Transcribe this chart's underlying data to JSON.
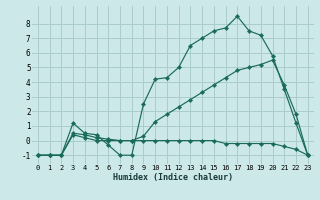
{
  "xlabel": "Humidex (Indice chaleur)",
  "bg_color": "#cce8e8",
  "grid_color": "#aacccc",
  "line_color": "#1a6b5a",
  "xlim": [
    -0.5,
    23.5
  ],
  "ylim": [
    -1.6,
    9.2
  ],
  "xticks": [
    0,
    1,
    2,
    3,
    4,
    5,
    6,
    7,
    8,
    9,
    10,
    11,
    12,
    13,
    14,
    15,
    16,
    17,
    18,
    19,
    20,
    21,
    22,
    23
  ],
  "yticks": [
    -1,
    0,
    1,
    2,
    3,
    4,
    5,
    6,
    7,
    8
  ],
  "series_top": {
    "x": [
      0,
      1,
      2,
      3,
      4,
      5,
      6,
      7,
      8,
      9,
      10,
      11,
      12,
      13,
      14,
      15,
      16,
      17,
      18,
      19,
      20,
      21,
      22,
      23
    ],
    "y": [
      -1,
      -1,
      -1,
      1.2,
      0.5,
      0.4,
      -0.3,
      -1,
      -1,
      2.5,
      4.2,
      4.3,
      5.0,
      6.5,
      7.0,
      7.5,
      7.7,
      8.5,
      7.5,
      7.2,
      5.8,
      3.5,
      1.2,
      -1
    ]
  },
  "series_mid": {
    "x": [
      0,
      1,
      2,
      3,
      4,
      5,
      6,
      7,
      8,
      9,
      10,
      11,
      12,
      13,
      14,
      15,
      16,
      17,
      18,
      19,
      20,
      21,
      22,
      23
    ],
    "y": [
      -1,
      -1,
      -1,
      0.5,
      0.4,
      0.2,
      0.1,
      0.0,
      0.0,
      0.3,
      1.3,
      1.8,
      2.3,
      2.8,
      3.3,
      3.8,
      4.3,
      4.8,
      5.0,
      5.2,
      5.5,
      3.8,
      1.8,
      -1
    ]
  },
  "series_bot": {
    "x": [
      0,
      1,
      2,
      3,
      4,
      5,
      6,
      7,
      8,
      9,
      10,
      11,
      12,
      13,
      14,
      15,
      16,
      17,
      18,
      19,
      20,
      21,
      22,
      23
    ],
    "y": [
      -1,
      -1,
      -1,
      0.4,
      0.2,
      0.0,
      0.0,
      0.0,
      0.0,
      0.0,
      0.0,
      0.0,
      0.0,
      0.0,
      0.0,
      0.0,
      -0.2,
      -0.2,
      -0.2,
      -0.2,
      -0.2,
      -0.4,
      -0.6,
      -1
    ]
  }
}
